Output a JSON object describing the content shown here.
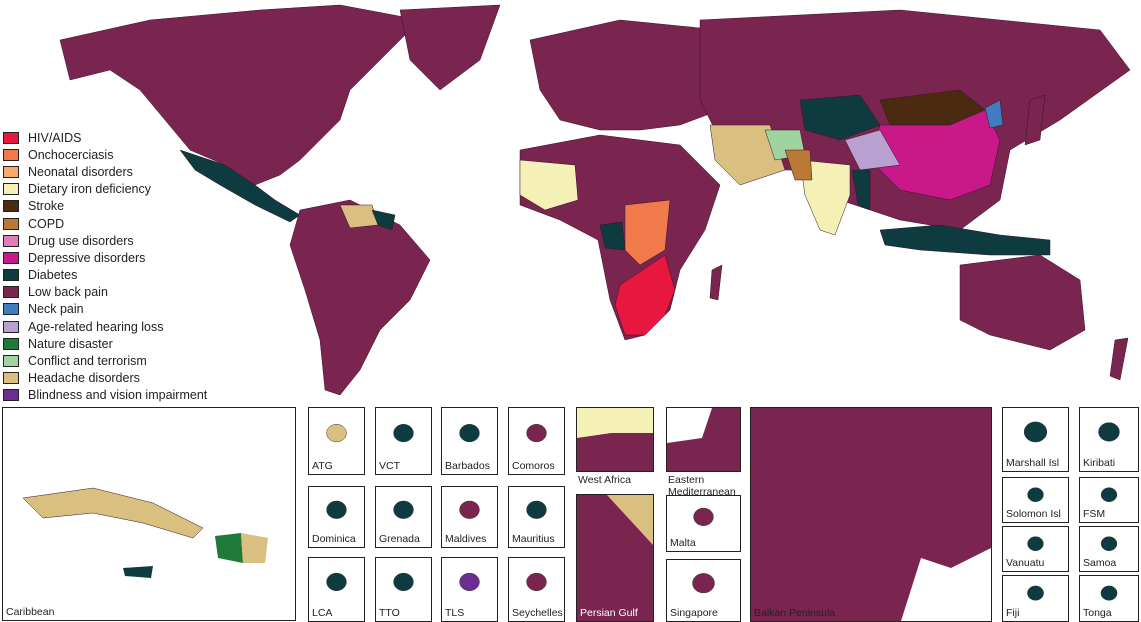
{
  "legend": [
    {
      "label": "HIV/AIDS",
      "color": "#e8173f"
    },
    {
      "label": "Onchocerciasis",
      "color": "#f07a4a"
    },
    {
      "label": "Neonatal disorders",
      "color": "#f7a86a"
    },
    {
      "label": "Dietary iron deficiency",
      "color": "#f5f0b5"
    },
    {
      "label": "Stroke",
      "color": "#4a2a10"
    },
    {
      "label": "COPD",
      "color": "#b87a35"
    },
    {
      "label": "Drug use disorders",
      "color": "#df7fb6"
    },
    {
      "label": "Depressive disorders",
      "color": "#c8188a"
    },
    {
      "label": "Diabetes",
      "color": "#0d3b40"
    },
    {
      "label": "Low back pain",
      "color": "#7a2550"
    },
    {
      "label": "Neck pain",
      "color": "#3f7cc0"
    },
    {
      "label": "Age-related hearing loss",
      "color": "#b8a0d0"
    },
    {
      "label": "Nature disaster",
      "color": "#1f7a3a"
    },
    {
      "label": "Conflict and terrorism",
      "color": "#9fd3a0"
    },
    {
      "label": "Headache disorders",
      "color": "#d9bf80"
    },
    {
      "label": "Blindness and vision impairment",
      "color": "#6a2d90"
    }
  ],
  "insets": {
    "caribbean": "Caribbean",
    "atg": "ATG",
    "vct": "VCT",
    "barbados": "Barbados",
    "comoros": "Comoros",
    "dominica": "Dominica",
    "grenada": "Grenada",
    "maldives": "Maldives",
    "mauritius": "Mauritius",
    "lca": "LCA",
    "tto": "TTO",
    "tls": "TLS",
    "seychelles": "Seychelles",
    "west_africa": "West Africa",
    "eastern_med": "Eastern Mediterranean",
    "persian_gulf": "Persian Gulf",
    "malta": "Malta",
    "singapore": "Singapore",
    "balkan": "Balkan Peninsula",
    "marshall": "Marshall Isl",
    "kiribati": "Kiribati",
    "solomon": "Solomon Isl",
    "fsm": "FSM",
    "vanuatu": "Vanuatu",
    "samoa": "Samoa",
    "fiji": "Fiji",
    "tonga": "Tonga"
  }
}
